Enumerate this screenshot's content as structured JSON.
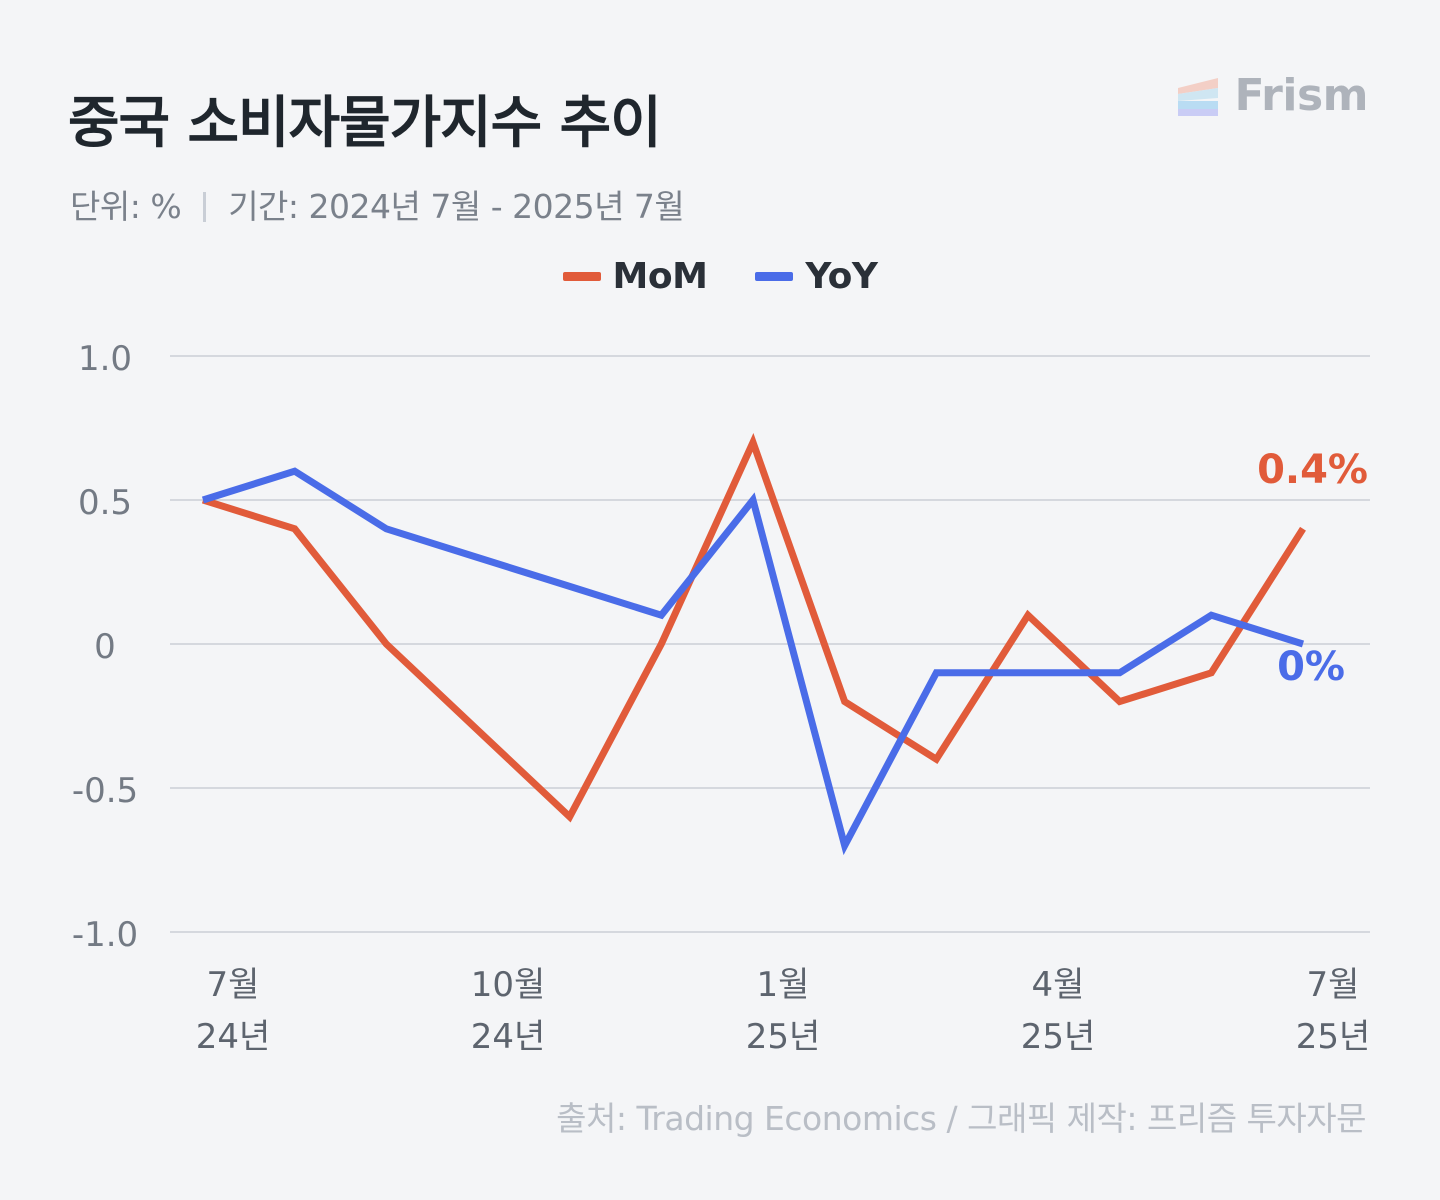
{
  "title": "중국 소비자물가지수 추이",
  "subtitle": {
    "unit": "단위: %",
    "period": "기간: 2024년 7월 - 2025년 7월"
  },
  "brand": {
    "name": "Frism",
    "logo_colors": [
      "#f3cfc6",
      "#cfe6f2",
      "#b9dcf3",
      "#c9ccf5"
    ]
  },
  "source": "출처: Trading Economics / 그래픽 제작: 프리즘 투자자문",
  "chart_data": {
    "type": "line",
    "x": [
      "2024-07",
      "2024-08",
      "2024-09",
      "2024-10",
      "2024-11",
      "2024-12",
      "2025-01",
      "2025-02",
      "2025-03",
      "2025-04",
      "2025-05",
      "2025-06",
      "2025-07"
    ],
    "x_tick_labels": [
      {
        "index": 0,
        "month": "7월",
        "year": "24년"
      },
      {
        "index": 3,
        "month": "10월",
        "year": "24년"
      },
      {
        "index": 6,
        "month": "1월",
        "year": "25년"
      },
      {
        "index": 9,
        "month": "4월",
        "year": "25년"
      },
      {
        "index": 12,
        "month": "7월",
        "year": "25년"
      }
    ],
    "y_ticks": [
      {
        "value": 1.0,
        "label": "1.0"
      },
      {
        "value": 0.5,
        "label": "0.5"
      },
      {
        "value": 0,
        "label": "0"
      },
      {
        "value": -0.5,
        "label": "-0.5"
      },
      {
        "value": -1.0,
        "label": "-1.0"
      }
    ],
    "ylim": [
      -1.0,
      1.0
    ],
    "grid": true,
    "legend_position": "top-center",
    "series": [
      {
        "name": "MoM",
        "color": "#e15b3a",
        "values": [
          0.5,
          0.4,
          0.0,
          -0.3,
          -0.6,
          0.0,
          0.7,
          -0.2,
          -0.4,
          0.1,
          -0.2,
          -0.1,
          0.4
        ],
        "end_label": "0.4%"
      },
      {
        "name": "YoY",
        "color": "#4a6ce8",
        "values": [
          0.5,
          0.6,
          0.4,
          0.3,
          0.2,
          0.1,
          0.5,
          -0.7,
          -0.1,
          -0.1,
          -0.1,
          0.1,
          0.0
        ],
        "end_label": "0%"
      }
    ]
  }
}
